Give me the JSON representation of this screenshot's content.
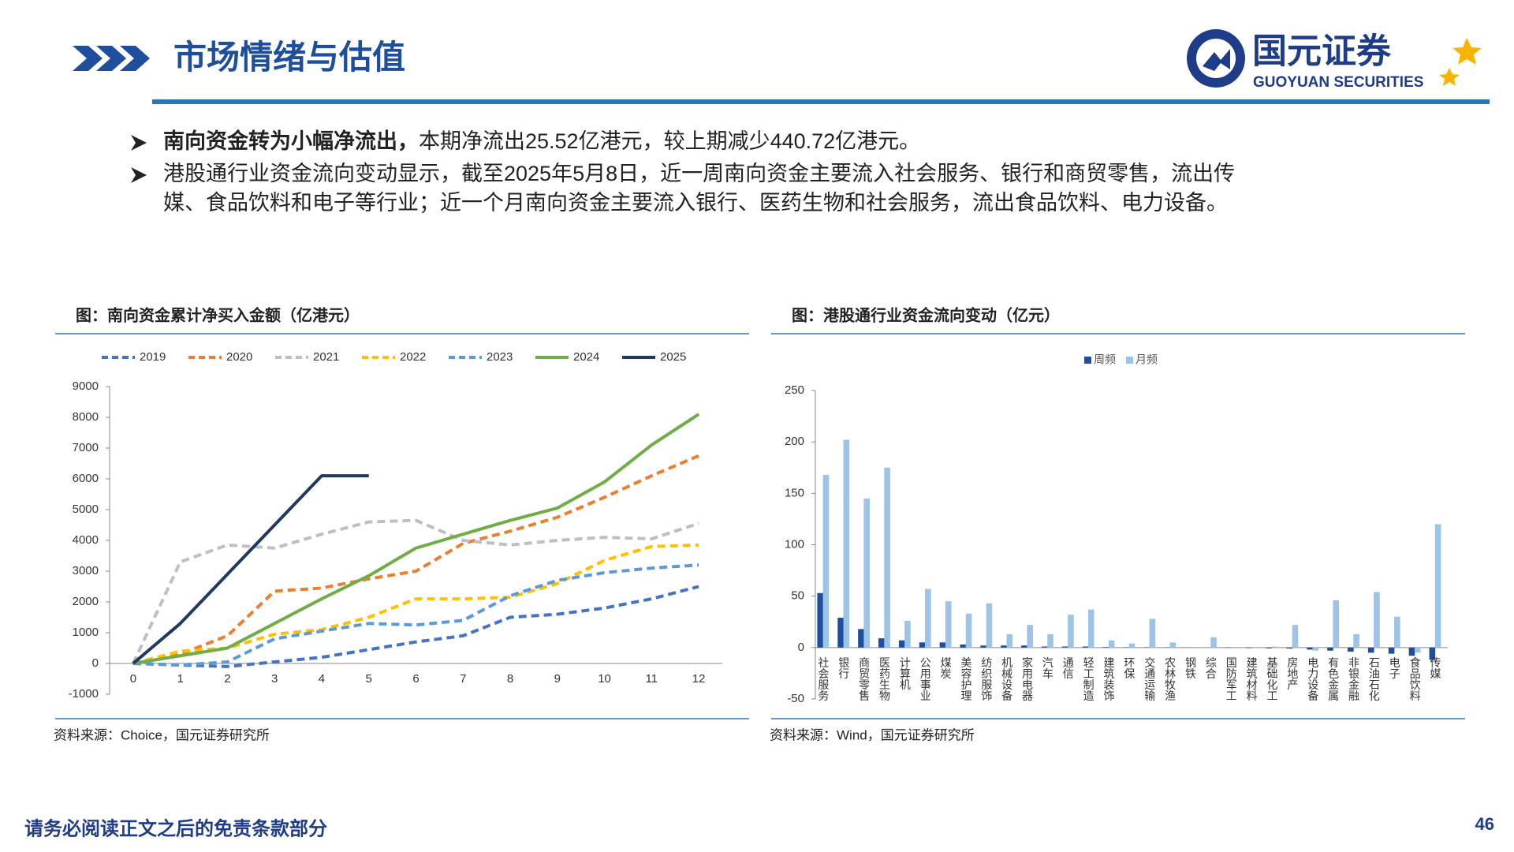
{
  "header": {
    "title": "市场情绪与估值"
  },
  "logo": {
    "name": "国元证券",
    "english": "GUOYUAN SECURITIES"
  },
  "bullets": [
    {
      "bold": "南向资金转为小幅净流出，",
      "text": "本期净流出25.52亿港元，较上期减少440.72亿港元。"
    },
    {
      "lines": [
        "港股通行业资金流向变动显示，截至2025年5月8日，近一周南向资金主要流入社会服务、银行和商贸零售，流出传",
        "媒、食品饮料和电子等行业；近一个月南向资金主要流入银行、医药生物和社会服务，流出食品饮料、电力设备。"
      ]
    }
  ],
  "chart_data": [
    {
      "type": "line",
      "title": "图：南向资金累计净买入金额（亿港元）",
      "source": "资料来源：Choice，国元证券研究所",
      "x": [
        0,
        1,
        2,
        3,
        4,
        5,
        6,
        7,
        8,
        9,
        10,
        11,
        12
      ],
      "xlim": [
        -0.5,
        12.5
      ],
      "xticks": [
        0,
        1,
        2,
        3,
        4,
        5,
        6,
        7,
        8,
        9,
        10,
        11,
        12
      ],
      "ylim": [
        -1000,
        9000
      ],
      "yticks": [
        -1000,
        0,
        1000,
        2000,
        3000,
        4000,
        5000,
        6000,
        7000,
        8000,
        9000
      ],
      "grid": false,
      "legend": "top",
      "series": [
        {
          "name": "2019",
          "color": "#4472c4",
          "line_style": "dashed",
          "values": [
            0,
            -50,
            -100,
            50,
            200,
            450,
            700,
            900,
            1500,
            1600,
            1800,
            2100,
            2500
          ]
        },
        {
          "name": "2020",
          "color": "#ed7d31",
          "line_style": "dashed",
          "values": [
            0,
            300,
            900,
            2350,
            2450,
            2750,
            3000,
            3900,
            4300,
            4750,
            5400,
            6100,
            6750
          ]
        },
        {
          "name": "2021",
          "color": "#bfbfbf",
          "line_style": "dashed",
          "values": [
            0,
            3300,
            3850,
            3750,
            4200,
            4600,
            4650,
            4000,
            3850,
            4000,
            4100,
            4050,
            4550
          ]
        },
        {
          "name": "2022",
          "color": "#ffc000",
          "line_style": "dashed",
          "values": [
            0,
            400,
            500,
            950,
            1100,
            1500,
            2100,
            2100,
            2150,
            2600,
            3350,
            3800,
            3850
          ]
        },
        {
          "name": "2023",
          "color": "#5b9bd5",
          "line_style": "dashed",
          "values": [
            0,
            -50,
            50,
            800,
            1050,
            1300,
            1250,
            1400,
            2200,
            2700,
            2950,
            3100,
            3200
          ]
        },
        {
          "name": "2024",
          "color": "#70ad47",
          "line_style": "solid",
          "values": [
            0,
            250,
            500,
            1300,
            2100,
            2850,
            3750,
            4200,
            4650,
            5050,
            5900,
            7100,
            8100
          ]
        },
        {
          "name": "2025",
          "color": "#203864",
          "line_style": "solid",
          "values": [
            0,
            1300,
            2900,
            4500,
            6100,
            6100,
            null,
            null,
            null,
            null,
            null,
            null,
            null
          ]
        }
      ]
    },
    {
      "type": "bar",
      "title": "图：港股通行业资金流向变动（亿元）",
      "source": "资料来源：Wind，国元证券研究所",
      "categories": [
        "社会服务",
        "银行",
        "商贸零售",
        "医药生物",
        "计算机",
        "公用事业",
        "煤炭",
        "美容护理",
        "纺织服饰",
        "机械设备",
        "家用电器",
        "汽车",
        "通信",
        "轻工制造",
        "建筑装饰",
        "环保",
        "交通运输",
        "农林牧渔",
        "钢铁",
        "综合",
        "国防军工",
        "建筑材料",
        "基础化工",
        "房地产",
        "电力设备",
        "有色金属",
        "非银金融",
        "石油石化",
        "电子",
        "食品饮料",
        "传媒"
      ],
      "ylim": [
        -50,
        250
      ],
      "yticks": [
        -50,
        0,
        50,
        100,
        150,
        200,
        250
      ],
      "grid": false,
      "legend": "top",
      "series": [
        {
          "name": "周频",
          "color": "#1f4e9c",
          "values": [
            53,
            29,
            18,
            9,
            7,
            5,
            5,
            3,
            2,
            2,
            2,
            1,
            1,
            1,
            0.5,
            0.3,
            0.3,
            0.2,
            0.1,
            0,
            -0.3,
            -0.5,
            -0.8,
            -1,
            -2,
            -3,
            -4,
            -5,
            -6,
            -8,
            -12
          ]
        },
        {
          "name": "月频",
          "color": "#9dc3e6",
          "values": [
            168,
            202,
            145,
            175,
            26,
            57,
            45,
            33,
            43,
            13,
            22,
            13,
            32,
            37,
            7,
            4,
            28,
            5,
            0,
            10,
            0,
            0,
            1,
            22,
            -3,
            46,
            13,
            54,
            30,
            -5,
            120
          ]
        }
      ]
    }
  ],
  "footer": {
    "disclaimer": "请务必阅读正文之后的免责条款部分",
    "page": 46
  }
}
